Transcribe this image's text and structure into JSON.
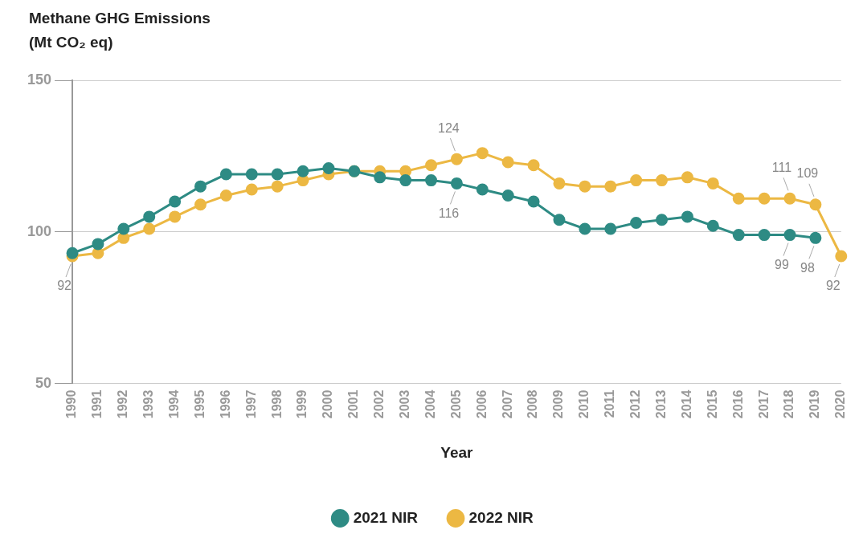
{
  "chart_data": {
    "type": "line",
    "ylabel": "Methane GHG Emissions (Mt CO₂ eq)",
    "xlabel": "Year",
    "categories": [
      "1990",
      "1991",
      "1992",
      "1993",
      "1994",
      "1995",
      "1996",
      "1997",
      "1998",
      "1999",
      "2000",
      "2001",
      "2002",
      "2003",
      "2004",
      "2005",
      "2006",
      "2007",
      "2008",
      "2009",
      "2010",
      "2011",
      "2012",
      "2013",
      "2014",
      "2015",
      "2016",
      "2017",
      "2018",
      "2019",
      "2020"
    ],
    "series": [
      {
        "name": "2021 NIR",
        "color": "#2e8b84",
        "values": [
          93,
          96,
          101,
          105,
          110,
          115,
          119,
          119,
          119,
          120,
          121,
          120,
          118,
          117,
          117,
          116,
          114,
          112,
          110,
          104,
          101,
          101,
          103,
          104,
          105,
          102,
          99,
          99,
          99,
          98,
          null
        ],
        "value_labels": [
          null,
          null,
          null,
          null,
          null,
          null,
          null,
          null,
          null,
          null,
          null,
          null,
          null,
          null,
          null,
          "116",
          null,
          null,
          null,
          null,
          null,
          null,
          null,
          null,
          null,
          null,
          null,
          null,
          "99",
          "98",
          null
        ]
      },
      {
        "name": "2022 NIR",
        "color": "#ecb843",
        "values": [
          92,
          93,
          98,
          101,
          105,
          109,
          112,
          114,
          115,
          117,
          119,
          120,
          120,
          120,
          122,
          124,
          126,
          123,
          122,
          116,
          115,
          115,
          117,
          117,
          118,
          116,
          111,
          111,
          111,
          109,
          92
        ],
        "value_labels": [
          "92",
          null,
          null,
          null,
          null,
          null,
          null,
          null,
          null,
          null,
          null,
          null,
          null,
          null,
          null,
          "124",
          null,
          null,
          null,
          null,
          null,
          null,
          null,
          null,
          null,
          null,
          null,
          null,
          "111",
          "109",
          "92"
        ]
      }
    ],
    "ylim": [
      50,
      150
    ],
    "yticks": [
      50,
      100,
      150
    ],
    "grid": "y",
    "legend": "bottom",
    "marker": "circle",
    "line_style": "solid"
  }
}
